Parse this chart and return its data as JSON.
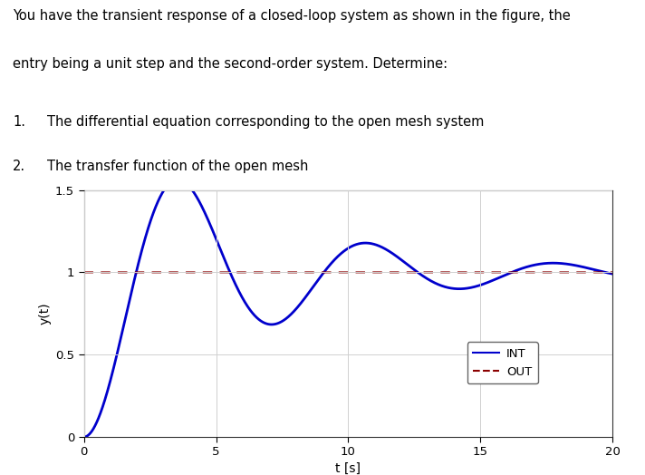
{
  "text_lines": [
    "You have the transient response of a closed-loop system as shown in the figure, the",
    "entry being a unit step and the second-order system. Determine:"
  ],
  "list_items": [
    [
      "1.",
      "The differential equation corresponding to the open mesh system"
    ],
    [
      "2.",
      "The transfer function of the open mesh"
    ]
  ],
  "ylabel": "y(t)",
  "xlabel": "t [s]",
  "ylim": [
    0,
    1.5
  ],
  "xlim": [
    0,
    20
  ],
  "yticks": [
    0,
    0.5,
    1,
    1.5
  ],
  "xticks": [
    0,
    5,
    10,
    15,
    20
  ],
  "int_color": "#0000CC",
  "out_color": "#8B0000",
  "legend_labels": [
    "INT",
    "OUT"
  ],
  "wn": 0.9,
  "zeta": 0.18,
  "background_color": "#ffffff",
  "fig_width": 7.12,
  "fig_height": 5.24,
  "text_fontsize": 10.5,
  "axis_fontsize": 10,
  "tick_fontsize": 9.5
}
